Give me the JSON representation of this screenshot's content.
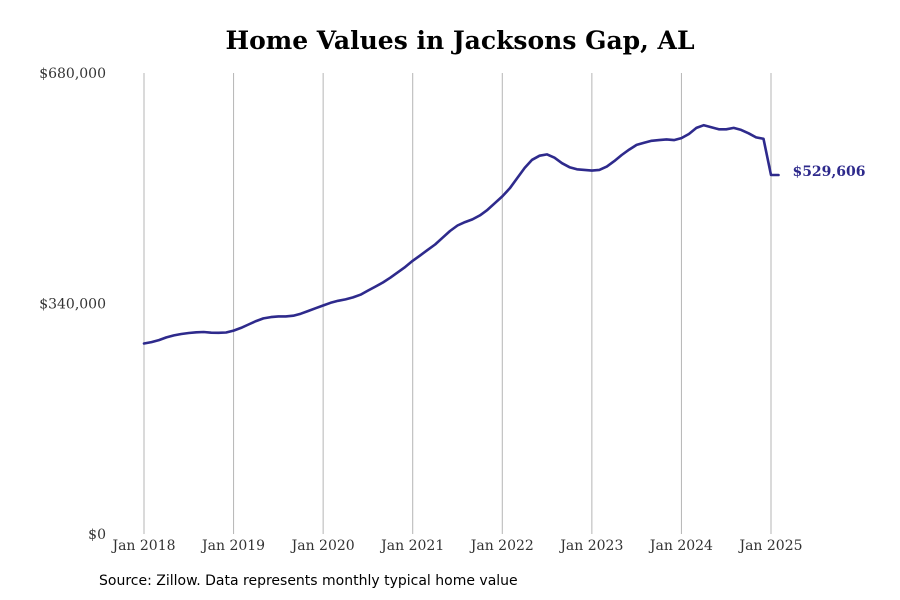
{
  "chart_data": {
    "type": "line",
    "title": "Home Values in Jacksons Gap, AL",
    "xlabel": "",
    "ylabel": "",
    "ylim": [
      0,
      680000
    ],
    "y_ticks": [
      0,
      340000,
      680000
    ],
    "y_tick_labels": [
      "$0",
      "$340,000",
      "$680,000"
    ],
    "x_range": [
      "2018-01",
      "2025-02"
    ],
    "x_ticks": [
      "2018-01",
      "2019-01",
      "2020-01",
      "2021-01",
      "2022-01",
      "2023-01",
      "2024-01",
      "2025-01"
    ],
    "x_tick_labels": [
      "Jan 2018",
      "Jan 2019",
      "Jan 2020",
      "Jan 2021",
      "Jan 2022",
      "Jan 2023",
      "Jan 2024",
      "Jan 2025"
    ],
    "grid": "vertical",
    "line_color": "#2e2a8c",
    "end_label": "$529,606",
    "series": [
      {
        "x": [
          "2018-01",
          "2018-02",
          "2018-03",
          "2018-04",
          "2018-05",
          "2018-06",
          "2018-07",
          "2018-08",
          "2018-09",
          "2018-10",
          "2018-11",
          "2018-12",
          "2019-01",
          "2019-02",
          "2019-03",
          "2019-04",
          "2019-05",
          "2019-06",
          "2019-07",
          "2019-08",
          "2019-09",
          "2019-10",
          "2019-11",
          "2019-12",
          "2020-01",
          "2020-02",
          "2020-03",
          "2020-04",
          "2020-05",
          "2020-06",
          "2020-07",
          "2020-08",
          "2020-09",
          "2020-10",
          "2020-11",
          "2020-12",
          "2021-01",
          "2021-02",
          "2021-03",
          "2021-04",
          "2021-05",
          "2021-06",
          "2021-07",
          "2021-08",
          "2021-09",
          "2021-10",
          "2021-11",
          "2021-12",
          "2022-01",
          "2022-02",
          "2022-03",
          "2022-04",
          "2022-05",
          "2022-06",
          "2022-07",
          "2022-08",
          "2022-09",
          "2022-10",
          "2022-11",
          "2022-12",
          "2023-01",
          "2023-02",
          "2023-03",
          "2023-04",
          "2023-05",
          "2023-06",
          "2023-07",
          "2023-08",
          "2023-09",
          "2023-10",
          "2023-11",
          "2023-12",
          "2024-01",
          "2024-02",
          "2024-03",
          "2024-04",
          "2024-05",
          "2024-06",
          "2024-07",
          "2024-08",
          "2024-09",
          "2024-10",
          "2024-11",
          "2024-12",
          "2025-01",
          "2025-02"
        ],
        "values": [
          281000,
          283000,
          286000,
          290000,
          293000,
          295000,
          296500,
          297500,
          298000,
          297000,
          296800,
          297200,
          300000,
          304000,
          309000,
          314000,
          318000,
          320000,
          321000,
          321000,
          322000,
          325000,
          329000,
          333000,
          337000,
          341000,
          344000,
          346000,
          349000,
          353000,
          359000,
          365000,
          371000,
          378000,
          386000,
          394000,
          403000,
          411000,
          419000,
          427000,
          437000,
          447000,
          455000,
          460000,
          464000,
          470000,
          478000,
          488000,
          498000,
          510000,
          525000,
          540000,
          552000,
          558000,
          560000,
          555000,
          547000,
          541000,
          538000,
          537000,
          536000,
          537000,
          542000,
          550000,
          559000,
          567000,
          574000,
          577000,
          580000,
          581000,
          582000,
          581000,
          584000,
          590000,
          599000,
          603000,
          600000,
          597000,
          597000,
          599000,
          596000,
          591000,
          585000,
          583000,
          529606,
          529606
        ]
      }
    ]
  },
  "footer": {
    "source": "Source: Zillow. Data represents monthly typical home value"
  }
}
